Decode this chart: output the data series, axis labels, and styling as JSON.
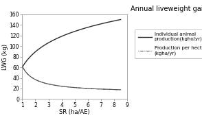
{
  "title": "Annual liveweight gain",
  "xlabel": "SR (ha/AE)",
  "ylabel": "LWG (kg)",
  "xlim": [
    1,
    9
  ],
  "ylim": [
    0,
    160
  ],
  "xticks": [
    1,
    2,
    3,
    4,
    5,
    6,
    7,
    8,
    9
  ],
  "yticks": [
    0,
    20,
    40,
    60,
    80,
    100,
    120,
    140,
    160
  ],
  "legend1": "Individual animal\nproduction(kgho/yr)",
  "legend2": "Production per hectare\n(kgha/yr)",
  "background_color": "#ffffff",
  "line1_color": "#2a2a2a",
  "line2_color": "#555555",
  "title_fontsize": 7,
  "axis_fontsize": 6,
  "tick_fontsize": 5.5,
  "legend_fontsize": 5.0,
  "a1": 42.0,
  "b1": 60.0,
  "c2": 50.3,
  "d2": 11.7
}
